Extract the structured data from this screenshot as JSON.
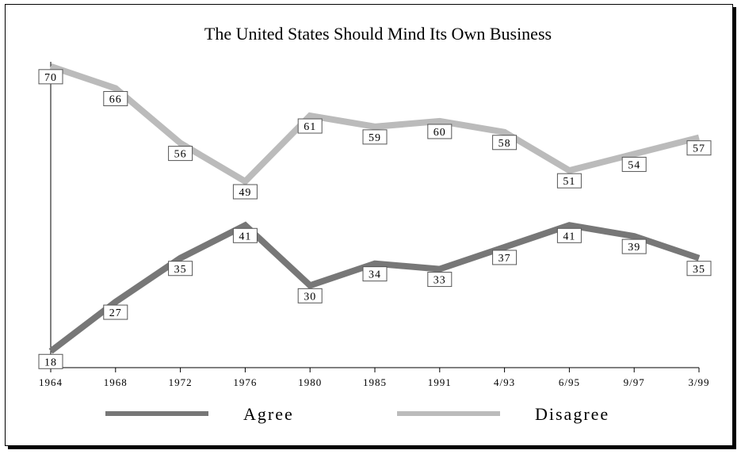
{
  "chart_data": {
    "type": "line",
    "title": "The United States Should Mind Its Own Business",
    "xlabel": "",
    "ylabel": "",
    "categories": [
      "1964",
      "1968",
      "1972",
      "1976",
      "1980",
      "1985",
      "1991",
      "4/93",
      "6/95",
      "9/97",
      "3/99"
    ],
    "ylim": [
      0,
      80
    ],
    "grid": false,
    "legend_position": "bottom",
    "series": [
      {
        "name": "Agree",
        "color": "#777777",
        "values": [
          18,
          27,
          35,
          41,
          30,
          34,
          33,
          37,
          41,
          39,
          35
        ]
      },
      {
        "name": "Disagree",
        "color": "#bbbbbb",
        "values": [
          70,
          66,
          56,
          49,
          61,
          59,
          60,
          58,
          51,
          54,
          57
        ]
      }
    ]
  }
}
